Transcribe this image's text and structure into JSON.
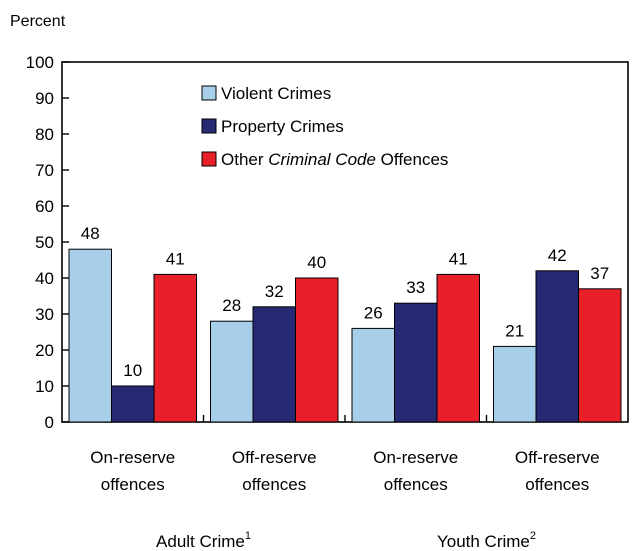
{
  "chart_data": {
    "type": "bar",
    "ylabel": "Percent",
    "ylim": [
      0,
      100
    ],
    "yticks": [
      0,
      10,
      20,
      30,
      40,
      50,
      60,
      70,
      80,
      90,
      100
    ],
    "grid": false,
    "legend_position": "top-center",
    "categories": [
      [
        "On-reserve",
        "offences"
      ],
      [
        "Off-reserve",
        "offences"
      ],
      [
        "On-reserve",
        "offences"
      ],
      [
        "Off-reserve",
        "offences"
      ]
    ],
    "groups": [
      {
        "label": "Adult Crime",
        "sup": "1"
      },
      {
        "label": "Youth Crime",
        "sup": "2"
      }
    ],
    "series": [
      {
        "name": "Violent Crimes",
        "color": "#a8cfe9",
        "values": [
          48,
          28,
          26,
          21
        ]
      },
      {
        "name": "Property Crimes",
        "color": "#252a72",
        "values": [
          10,
          32,
          33,
          42
        ]
      },
      {
        "name": "Other Criminal Code Offences",
        "name_parts": [
          "Other ",
          "Criminal Code",
          " Offences"
        ],
        "color": "#e8202a",
        "values": [
          41,
          40,
          41,
          37
        ]
      }
    ]
  }
}
